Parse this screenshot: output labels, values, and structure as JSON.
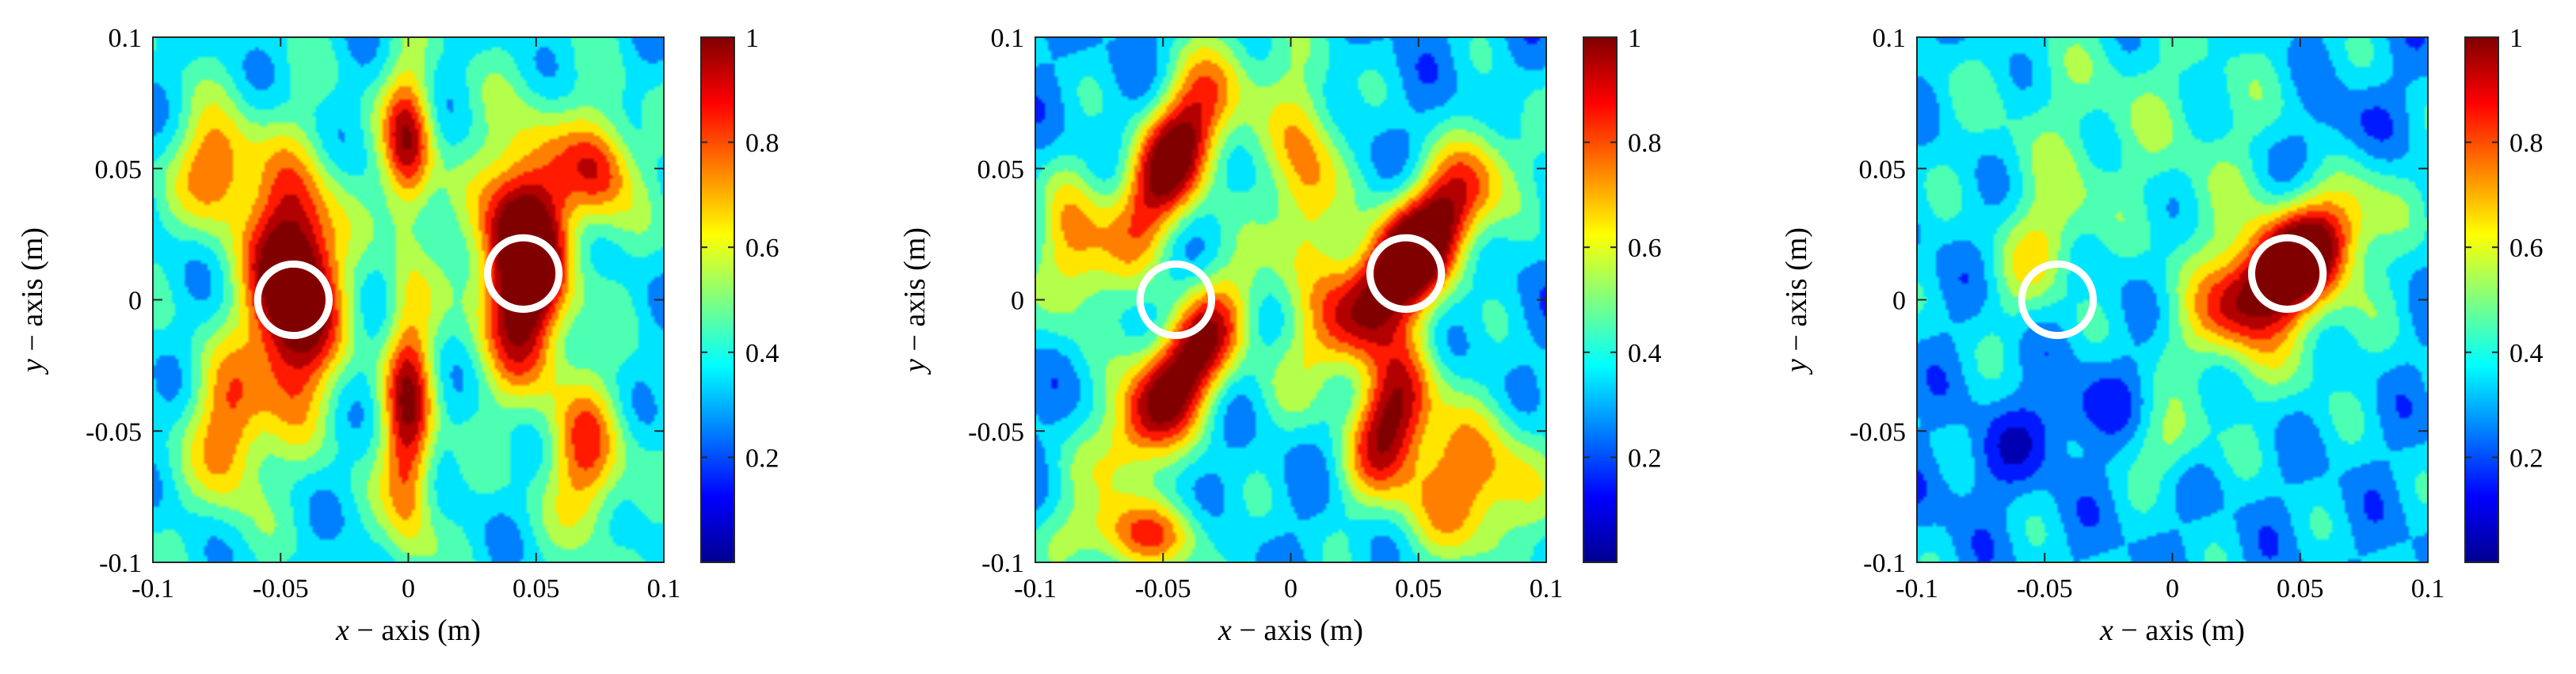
{
  "chart_data": [
    {
      "type": "heatmap",
      "title": "",
      "xlabel_var": "x",
      "xlabel_rest": " − axis (m)",
      "ylabel_var": "y",
      "ylabel_rest": " − axis (m)",
      "xlim": [
        -0.1,
        0.1
      ],
      "ylim": [
        -0.1,
        0.1
      ],
      "xticks": [
        -0.1,
        -0.05,
        0,
        0.05,
        0.1
      ],
      "xtick_labels": [
        "-0.1",
        "-0.05",
        "0",
        "0.05",
        "0.1"
      ],
      "yticks": [
        -0.1,
        -0.05,
        0,
        0.05,
        0.1
      ],
      "ytick_labels": [
        "-0.1",
        "-0.05",
        "0",
        "0.05",
        "0.1"
      ],
      "colorbar": {
        "range": [
          0,
          1
        ],
        "ticks": [
          0.2,
          0.4,
          0.6,
          0.8,
          1
        ],
        "tick_labels": [
          "0.2",
          "0.4",
          "0.6",
          "0.8",
          "1"
        ],
        "colormap": "jet"
      },
      "contour_levels": 10,
      "field": [
        {
          "x": -0.045,
          "y": 0.005,
          "amp": 1.0,
          "sx": 0.012,
          "sy": 0.03,
          "rot": 0
        },
        {
          "x": 0.045,
          "y": 0.015,
          "amp": 1.0,
          "sx": 0.012,
          "sy": 0.03,
          "rot": 0
        },
        {
          "x": 0.0,
          "y": 0.06,
          "amp": 0.6,
          "sx": 0.007,
          "sy": 0.02,
          "rot": 0
        },
        {
          "x": 0.0,
          "y": -0.045,
          "amp": 0.6,
          "sx": 0.007,
          "sy": 0.035,
          "rot": 0
        },
        {
          "x": -0.075,
          "y": 0.05,
          "amp": 0.5,
          "sx": 0.01,
          "sy": 0.015,
          "rot": 0
        },
        {
          "x": 0.075,
          "y": 0.05,
          "amp": 0.5,
          "sx": 0.01,
          "sy": 0.015,
          "rot": 0
        },
        {
          "x": -0.07,
          "y": -0.05,
          "amp": 0.45,
          "sx": 0.01,
          "sy": 0.02,
          "rot": 0
        },
        {
          "x": 0.07,
          "y": -0.06,
          "amp": 0.45,
          "sx": 0.01,
          "sy": 0.02,
          "rot": 0
        }
      ],
      "field_base": 0.36,
      "markers": [
        {
          "x": -0.045,
          "y": 0.0,
          "r": 0.014
        },
        {
          "x": 0.045,
          "y": 0.01,
          "r": 0.014
        }
      ]
    },
    {
      "type": "heatmap",
      "title": "",
      "xlabel_var": "x",
      "xlabel_rest": " − axis (m)",
      "ylabel_var": "y",
      "ylabel_rest": " − axis (m)",
      "xlim": [
        -0.1,
        0.1
      ],
      "ylim": [
        -0.1,
        0.1
      ],
      "xticks": [
        -0.1,
        -0.05,
        0,
        0.05,
        0.1
      ],
      "xtick_labels": [
        "-0.1",
        "-0.05",
        "0",
        "0.05",
        "0.1"
      ],
      "yticks": [
        -0.1,
        -0.05,
        0,
        0.05,
        0.1
      ],
      "ytick_labels": [
        "-0.1",
        "-0.05",
        "0",
        "0.05",
        "0.1"
      ],
      "colorbar": {
        "range": [
          0,
          1
        ],
        "ticks": [
          0.2,
          0.4,
          0.6,
          0.8,
          1
        ],
        "tick_labels": [
          "0.2",
          "0.4",
          "0.6",
          "0.8",
          "1"
        ],
        "colormap": "jet"
      },
      "contour_levels": 10,
      "field": [
        {
          "x": 0.045,
          "y": 0.015,
          "amp": 1.0,
          "sx": 0.012,
          "sy": 0.035,
          "rot": -0.7
        },
        {
          "x": -0.045,
          "y": 0.055,
          "amp": 0.8,
          "sx": 0.011,
          "sy": 0.03,
          "rot": -0.5
        },
        {
          "x": -0.045,
          "y": -0.03,
          "amp": 0.85,
          "sx": 0.011,
          "sy": 0.03,
          "rot": -0.6
        },
        {
          "x": 0.04,
          "y": -0.045,
          "amp": 0.7,
          "sx": 0.01,
          "sy": 0.02,
          "rot": -0.3
        },
        {
          "x": 0.07,
          "y": -0.07,
          "amp": 0.5,
          "sx": 0.02,
          "sy": 0.02,
          "rot": 0
        },
        {
          "x": -0.06,
          "y": -0.09,
          "amp": 0.45,
          "sx": 0.02,
          "sy": 0.01,
          "rot": 0
        },
        {
          "x": 0.005,
          "y": 0.05,
          "amp": 0.45,
          "sx": 0.01,
          "sy": 0.03,
          "rot": 0
        },
        {
          "x": -0.085,
          "y": 0.02,
          "amp": 0.4,
          "sx": 0.01,
          "sy": 0.02,
          "rot": 0
        }
      ],
      "field_base": 0.3,
      "markers": [
        {
          "x": -0.045,
          "y": 0.0,
          "r": 0.014
        },
        {
          "x": 0.045,
          "y": 0.01,
          "r": 0.014
        }
      ]
    },
    {
      "type": "heatmap",
      "title": "",
      "xlabel_var": "x",
      "xlabel_rest": " − axis (m)",
      "ylabel_var": "y",
      "ylabel_rest": " − axis (m)",
      "xlim": [
        -0.1,
        0.1
      ],
      "ylim": [
        -0.1,
        0.1
      ],
      "xticks": [
        -0.1,
        -0.05,
        0,
        0.05,
        0.1
      ],
      "xtick_labels": [
        "-0.1",
        "-0.05",
        "0",
        "0.05",
        "0.1"
      ],
      "yticks": [
        -0.1,
        -0.05,
        0,
        0.05,
        0.1
      ],
      "ytick_labels": [
        "-0.1",
        "-0.05",
        "0",
        "0.05",
        "0.1"
      ],
      "colorbar": {
        "range": [
          0,
          1
        ],
        "ticks": [
          0.2,
          0.4,
          0.6,
          0.8,
          1
        ],
        "tick_labels": [
          "0.2",
          "0.4",
          "0.6",
          "0.8",
          "1"
        ],
        "colormap": "jet"
      },
      "contour_levels": 10,
      "field": [
        {
          "x": 0.045,
          "y": 0.012,
          "amp": 0.75,
          "sx": 0.011,
          "sy": 0.025,
          "rot": -0.9
        },
        {
          "x": 0.04,
          "y": 0.005,
          "amp": 0.3,
          "sx": 0.025,
          "sy": 0.03,
          "rot": -0.5
        },
        {
          "x": -0.05,
          "y": 0.02,
          "amp": 0.3,
          "sx": 0.01,
          "sy": 0.02,
          "rot": -0.4
        },
        {
          "x": -0.02,
          "y": 0.07,
          "amp": 0.15,
          "sx": 0.05,
          "sy": 0.03,
          "rot": 0
        },
        {
          "x": 0.0,
          "y": -0.055,
          "amp": 0.2,
          "sx": 0.01,
          "sy": 0.01,
          "rot": 0
        },
        {
          "x": -0.05,
          "y": -0.05,
          "amp": -0.15,
          "sx": 0.03,
          "sy": 0.01,
          "rot": 0.5
        },
        {
          "x": 0.06,
          "y": 0.06,
          "amp": -0.15,
          "sx": 0.02,
          "sy": 0.01,
          "rot": 0.7
        }
      ],
      "field_base": 0.3,
      "markers": [
        {
          "x": -0.045,
          "y": 0.0,
          "r": 0.014
        },
        {
          "x": 0.045,
          "y": 0.01,
          "r": 0.014
        }
      ]
    }
  ]
}
